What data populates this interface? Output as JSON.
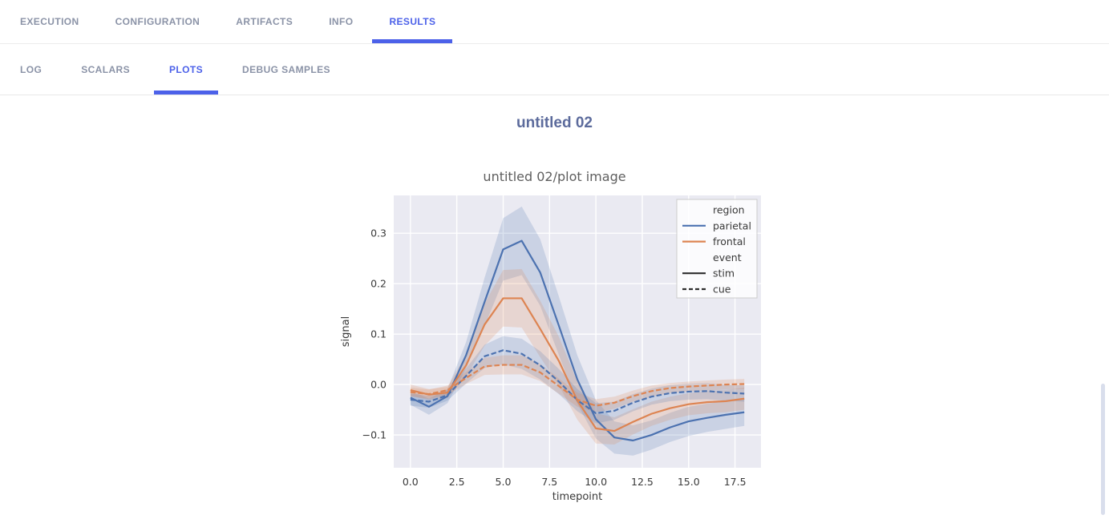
{
  "tabs": {
    "main": [
      {
        "label": "EXECUTION",
        "active": false
      },
      {
        "label": "CONFIGURATION",
        "active": false
      },
      {
        "label": "ARTIFACTS",
        "active": false
      },
      {
        "label": "INFO",
        "active": false
      },
      {
        "label": "RESULTS",
        "active": true
      }
    ],
    "results": [
      {
        "label": "LOG",
        "active": false
      },
      {
        "label": "SCALARS",
        "active": false
      },
      {
        "label": "PLOTS",
        "active": true
      },
      {
        "label": "DEBUG SAMPLES",
        "active": false
      }
    ]
  },
  "page": {
    "title": "untitled 02"
  },
  "colors": {
    "accent": "#4c61e9",
    "tab_inactive": "#8b93a7",
    "header_title": "#5c6b9c",
    "plot_background": "#eaeaf2",
    "grid": "#ffffff",
    "blue": "#4c72b0",
    "orange": "#dd8452",
    "legend_line": "#2d2d2d",
    "scrollbar": "#d9deec"
  },
  "chart_data": {
    "type": "line",
    "title": "untitled 02/plot image",
    "xlabel": "timepoint",
    "ylabel": "signal",
    "xlim": [
      -0.9,
      18.9
    ],
    "ylim": [
      -0.165,
      0.375
    ],
    "grid": true,
    "background": "#eaeaf2",
    "legend_position": "upper right",
    "xticks": [
      {
        "v": 0.0,
        "label": "0.0"
      },
      {
        "v": 2.5,
        "label": "2.5"
      },
      {
        "v": 5.0,
        "label": "5.0"
      },
      {
        "v": 7.5,
        "label": "7.5"
      },
      {
        "v": 10.0,
        "label": "10.0"
      },
      {
        "v": 12.5,
        "label": "12.5"
      },
      {
        "v": 15.0,
        "label": "15.0"
      },
      {
        "v": 17.5,
        "label": "17.5"
      }
    ],
    "yticks": [
      {
        "v": 0.3,
        "label": "0.3"
      },
      {
        "v": 0.2,
        "label": "0.2"
      },
      {
        "v": 0.1,
        "label": "0.1"
      },
      {
        "v": 0.0,
        "label": "0.0"
      },
      {
        "v": -0.1,
        "label": "−0.1"
      }
    ],
    "x": [
      0,
      1,
      2,
      3,
      4,
      5,
      6,
      7,
      8,
      9,
      10,
      11,
      12,
      13,
      14,
      15,
      16,
      17,
      18
    ],
    "series": [
      {
        "name": "parietal-stim",
        "region": "parietal",
        "event": "stim",
        "color": "#4c72b0",
        "dash": "solid",
        "values": [
          -0.026,
          -0.044,
          -0.023,
          0.058,
          0.164,
          0.268,
          0.285,
          0.222,
          0.117,
          0.01,
          -0.069,
          -0.105,
          -0.111,
          -0.1,
          -0.085,
          -0.073,
          -0.066,
          -0.06,
          -0.055
        ],
        "ci": [
          0.014,
          0.016,
          0.014,
          0.026,
          0.048,
          0.062,
          0.068,
          0.066,
          0.058,
          0.048,
          0.038,
          0.032,
          0.03,
          0.029,
          0.029,
          0.029,
          0.028,
          0.028,
          0.027
        ]
      },
      {
        "name": "frontal-stim",
        "region": "frontal",
        "event": "stim",
        "color": "#dd8452",
        "dash": "solid",
        "values": [
          -0.011,
          -0.02,
          -0.016,
          0.038,
          0.119,
          0.171,
          0.171,
          0.11,
          0.047,
          -0.032,
          -0.087,
          -0.092,
          -0.074,
          -0.058,
          -0.047,
          -0.039,
          -0.035,
          -0.033,
          -0.028
        ],
        "ci": [
          0.011,
          0.011,
          0.011,
          0.022,
          0.042,
          0.056,
          0.058,
          0.056,
          0.048,
          0.038,
          0.03,
          0.027,
          0.025,
          0.024,
          0.023,
          0.022,
          0.022,
          0.022,
          0.022
        ]
      },
      {
        "name": "parietal-cue",
        "region": "parietal",
        "event": "cue",
        "color": "#4c72b0",
        "dash": "dashed",
        "values": [
          -0.03,
          -0.034,
          -0.021,
          0.017,
          0.056,
          0.068,
          0.061,
          0.038,
          0.006,
          -0.031,
          -0.057,
          -0.052,
          -0.036,
          -0.024,
          -0.017,
          -0.014,
          -0.013,
          -0.016,
          -0.018
        ],
        "ci": [
          0.012,
          0.012,
          0.011,
          0.015,
          0.023,
          0.028,
          0.03,
          0.028,
          0.025,
          0.022,
          0.02,
          0.018,
          0.017,
          0.016,
          0.016,
          0.016,
          0.016,
          0.016,
          0.016
        ]
      },
      {
        "name": "frontal-cue",
        "region": "frontal",
        "event": "cue",
        "color": "#dd8452",
        "dash": "dashed",
        "values": [
          -0.015,
          -0.019,
          -0.011,
          0.013,
          0.036,
          0.039,
          0.039,
          0.024,
          -0.003,
          -0.03,
          -0.042,
          -0.036,
          -0.023,
          -0.013,
          -0.007,
          -0.004,
          -0.002,
          0.0,
          0.001
        ],
        "ci": [
          0.009,
          0.009,
          0.009,
          0.012,
          0.017,
          0.019,
          0.019,
          0.017,
          0.015,
          0.014,
          0.013,
          0.012,
          0.011,
          0.011,
          0.01,
          0.01,
          0.01,
          0.01,
          0.01
        ]
      }
    ],
    "legend": [
      {
        "label": "region",
        "type": "title"
      },
      {
        "label": "parietal",
        "type": "line",
        "color": "#4c72b0",
        "dash": "solid"
      },
      {
        "label": "frontal",
        "type": "line",
        "color": "#dd8452",
        "dash": "solid"
      },
      {
        "label": "event",
        "type": "title"
      },
      {
        "label": "stim",
        "type": "line",
        "color": "#2d2d2d",
        "dash": "solid"
      },
      {
        "label": "cue",
        "type": "line",
        "color": "#2d2d2d",
        "dash": "dashed"
      }
    ]
  }
}
